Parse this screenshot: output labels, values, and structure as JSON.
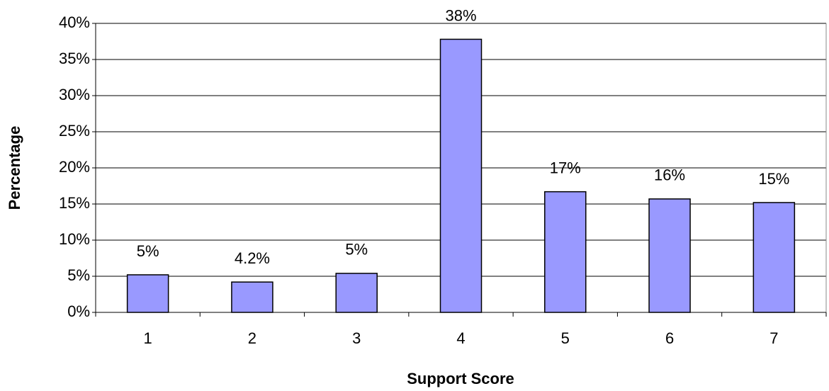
{
  "chart_data": {
    "type": "bar",
    "x_label": "Support Score",
    "y_label": "Percentage",
    "categories": [
      "1",
      "2",
      "3",
      "4",
      "5",
      "6",
      "7"
    ],
    "values": [
      5.2,
      4.2,
      5.4,
      37.8,
      16.7,
      15.7,
      15.2
    ],
    "value_labels": [
      "5%",
      "4.2%",
      "5%",
      "38%",
      "17%",
      "16%",
      "15%"
    ],
    "color": "#9999ff",
    "ylim": [
      0,
      40
    ],
    "yticks": [
      {
        "value": 0,
        "label": "0%"
      },
      {
        "value": 5,
        "label": "5%"
      },
      {
        "value": 10,
        "label": "10%"
      },
      {
        "value": 15,
        "label": "15%"
      },
      {
        "value": 20,
        "label": "20%"
      },
      {
        "value": 25,
        "label": "25%"
      },
      {
        "value": 30,
        "label": "30%"
      },
      {
        "value": 35,
        "label": "35%"
      },
      {
        "value": 40,
        "label": "40%"
      }
    ],
    "grid": true
  }
}
